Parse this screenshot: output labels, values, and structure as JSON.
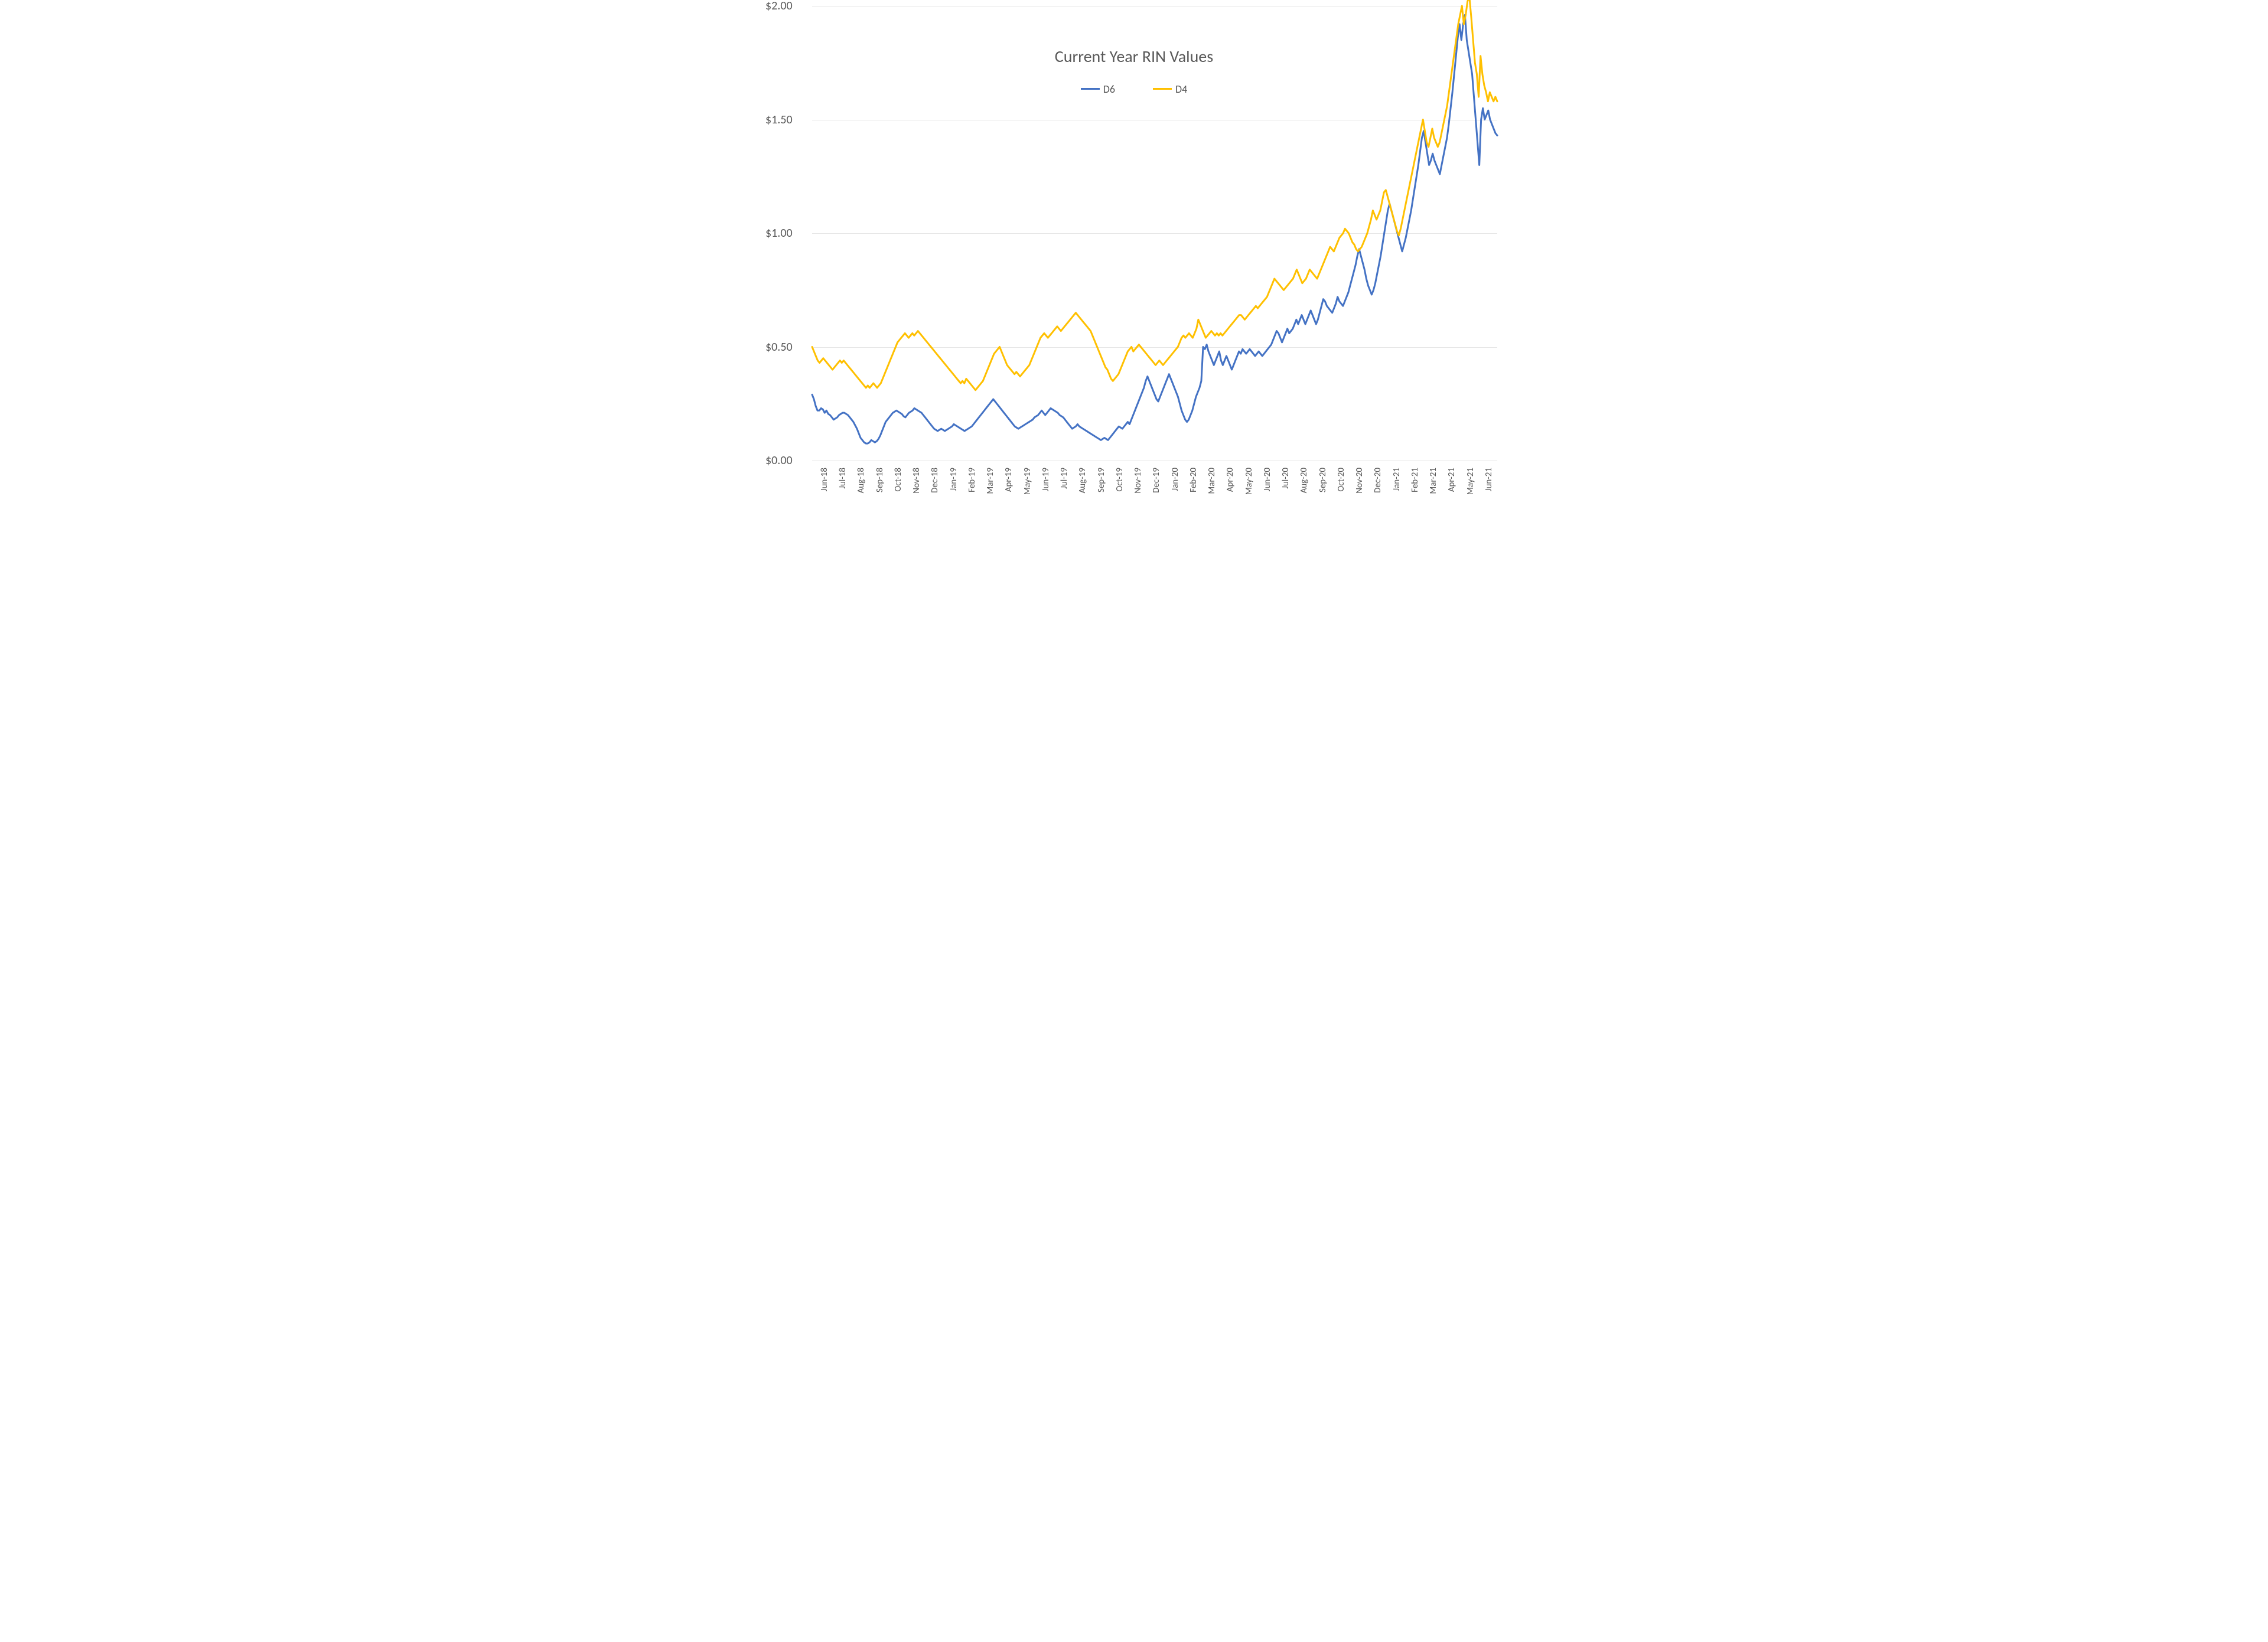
{
  "chart": {
    "type": "line",
    "title": "Current Year RIN Values",
    "title_fontsize": 28,
    "title_color": "#595959",
    "background_color": "#ffffff",
    "grid_color": "#e6e6e6",
    "axis_label_color": "#595959",
    "axis_label_fontsize": 18,
    "line_width": 3.0,
    "y_axis": {
      "min": 0.0,
      "max": 2.0,
      "tick_step": 0.5,
      "ticks": [
        0.0,
        0.5,
        1.0,
        1.5,
        2.0
      ],
      "tick_labels": [
        "$0.00",
        "$0.50",
        "$1.00",
        "$1.50",
        "$2.00"
      ],
      "currency_prefix": "$"
    },
    "x_axis": {
      "tick_labels": [
        "Jun-18",
        "Jul-18",
        "Aug-18",
        "Sep-18",
        "Oct-18",
        "Nov-18",
        "Dec-18",
        "Jan-19",
        "Feb-19",
        "Mar-19",
        "Apr-19",
        "May-19",
        "Jun-19",
        "Jul-19",
        "Aug-19",
        "Sep-19",
        "Oct-19",
        "Nov-19",
        "Dec-19",
        "Jan-20",
        "Feb-20",
        "Mar-20",
        "Apr-20",
        "May-20",
        "Jun-20",
        "Jul-20",
        "Aug-20",
        "Sep-20",
        "Oct-20",
        "Nov-20",
        "Dec-20",
        "Jan-21",
        "Feb-21",
        "Mar-21",
        "Apr-21",
        "May-21",
        "Jun-21"
      ],
      "tick_fontsize": 15,
      "rotation_deg": -90
    },
    "legend": {
      "position": "top-center",
      "items": [
        {
          "label": "D6",
          "color": "#4472c4"
        },
        {
          "label": "D4",
          "color": "#ffc000"
        }
      ],
      "fontsize": 18
    },
    "series": {
      "D6": {
        "label": "D6",
        "color": "#4472c4",
        "values": [
          0.29,
          0.27,
          0.24,
          0.22,
          0.22,
          0.23,
          0.225,
          0.21,
          0.22,
          0.205,
          0.2,
          0.19,
          0.18,
          0.185,
          0.19,
          0.2,
          0.205,
          0.21,
          0.21,
          0.205,
          0.2,
          0.19,
          0.18,
          0.17,
          0.155,
          0.14,
          0.12,
          0.1,
          0.09,
          0.08,
          0.075,
          0.075,
          0.08,
          0.09,
          0.085,
          0.08,
          0.085,
          0.095,
          0.11,
          0.13,
          0.15,
          0.17,
          0.18,
          0.19,
          0.2,
          0.21,
          0.215,
          0.22,
          0.215,
          0.21,
          0.205,
          0.195,
          0.19,
          0.2,
          0.21,
          0.215,
          0.22,
          0.23,
          0.225,
          0.22,
          0.215,
          0.21,
          0.2,
          0.19,
          0.18,
          0.17,
          0.16,
          0.15,
          0.14,
          0.135,
          0.13,
          0.135,
          0.14,
          0.135,
          0.13,
          0.135,
          0.14,
          0.145,
          0.15,
          0.16,
          0.155,
          0.15,
          0.145,
          0.14,
          0.135,
          0.13,
          0.135,
          0.14,
          0.145,
          0.15,
          0.16,
          0.17,
          0.18,
          0.19,
          0.2,
          0.21,
          0.22,
          0.23,
          0.24,
          0.25,
          0.26,
          0.27,
          0.26,
          0.25,
          0.24,
          0.23,
          0.22,
          0.21,
          0.2,
          0.19,
          0.18,
          0.17,
          0.16,
          0.15,
          0.145,
          0.14,
          0.145,
          0.15,
          0.155,
          0.16,
          0.165,
          0.17,
          0.175,
          0.18,
          0.19,
          0.195,
          0.2,
          0.21,
          0.22,
          0.21,
          0.2,
          0.21,
          0.22,
          0.23,
          0.225,
          0.22,
          0.215,
          0.21,
          0.2,
          0.195,
          0.19,
          0.18,
          0.17,
          0.16,
          0.15,
          0.14,
          0.145,
          0.15,
          0.16,
          0.15,
          0.145,
          0.14,
          0.135,
          0.13,
          0.125,
          0.12,
          0.115,
          0.11,
          0.105,
          0.1,
          0.095,
          0.09,
          0.095,
          0.1,
          0.095,
          0.09,
          0.1,
          0.11,
          0.12,
          0.13,
          0.14,
          0.15,
          0.145,
          0.14,
          0.15,
          0.16,
          0.17,
          0.16,
          0.18,
          0.2,
          0.22,
          0.24,
          0.26,
          0.28,
          0.3,
          0.32,
          0.35,
          0.37,
          0.35,
          0.33,
          0.31,
          0.29,
          0.27,
          0.26,
          0.28,
          0.3,
          0.32,
          0.34,
          0.36,
          0.38,
          0.36,
          0.34,
          0.32,
          0.3,
          0.28,
          0.25,
          0.22,
          0.2,
          0.18,
          0.17,
          0.18,
          0.2,
          0.22,
          0.25,
          0.28,
          0.3,
          0.32,
          0.35,
          0.5,
          0.49,
          0.51,
          0.48,
          0.46,
          0.44,
          0.42,
          0.44,
          0.46,
          0.48,
          0.44,
          0.42,
          0.44,
          0.46,
          0.44,
          0.42,
          0.4,
          0.42,
          0.44,
          0.46,
          0.48,
          0.47,
          0.49,
          0.48,
          0.47,
          0.48,
          0.49,
          0.48,
          0.47,
          0.46,
          0.47,
          0.48,
          0.47,
          0.46,
          0.47,
          0.48,
          0.49,
          0.5,
          0.51,
          0.53,
          0.55,
          0.57,
          0.56,
          0.54,
          0.52,
          0.54,
          0.56,
          0.58,
          0.56,
          0.57,
          0.58,
          0.6,
          0.62,
          0.6,
          0.62,
          0.64,
          0.62,
          0.6,
          0.62,
          0.64,
          0.66,
          0.64,
          0.62,
          0.6,
          0.62,
          0.65,
          0.68,
          0.71,
          0.7,
          0.68,
          0.67,
          0.66,
          0.65,
          0.67,
          0.69,
          0.72,
          0.7,
          0.69,
          0.68,
          0.7,
          0.72,
          0.74,
          0.77,
          0.8,
          0.83,
          0.86,
          0.9,
          0.93,
          0.9,
          0.87,
          0.84,
          0.8,
          0.77,
          0.75,
          0.73,
          0.75,
          0.78,
          0.82,
          0.86,
          0.9,
          0.95,
          1.0,
          1.05,
          1.1,
          1.13,
          1.1,
          1.07,
          1.04,
          1.01,
          0.98,
          0.95,
          0.92,
          0.95,
          0.98,
          1.02,
          1.06,
          1.1,
          1.15,
          1.2,
          1.25,
          1.3,
          1.36,
          1.42,
          1.45,
          1.4,
          1.35,
          1.3,
          1.32,
          1.35,
          1.32,
          1.3,
          1.28,
          1.26,
          1.3,
          1.34,
          1.38,
          1.42,
          1.48,
          1.55,
          1.62,
          1.7,
          1.78,
          1.86,
          1.92,
          1.85,
          1.92,
          1.96,
          1.85,
          1.8,
          1.75,
          1.7,
          1.6,
          1.5,
          1.4,
          1.3,
          1.5,
          1.55,
          1.5,
          1.52,
          1.54,
          1.5,
          1.48,
          1.46,
          1.44,
          1.43
        ]
      },
      "D4": {
        "label": "D4",
        "color": "#ffc000",
        "values": [
          0.5,
          0.48,
          0.46,
          0.44,
          0.43,
          0.44,
          0.45,
          0.44,
          0.43,
          0.42,
          0.41,
          0.4,
          0.41,
          0.42,
          0.43,
          0.44,
          0.43,
          0.44,
          0.43,
          0.42,
          0.41,
          0.4,
          0.39,
          0.38,
          0.37,
          0.36,
          0.35,
          0.34,
          0.33,
          0.32,
          0.33,
          0.32,
          0.33,
          0.34,
          0.33,
          0.32,
          0.33,
          0.34,
          0.36,
          0.38,
          0.4,
          0.42,
          0.44,
          0.46,
          0.48,
          0.5,
          0.52,
          0.53,
          0.54,
          0.55,
          0.56,
          0.55,
          0.54,
          0.55,
          0.56,
          0.55,
          0.56,
          0.57,
          0.56,
          0.55,
          0.54,
          0.53,
          0.52,
          0.51,
          0.5,
          0.49,
          0.48,
          0.47,
          0.46,
          0.45,
          0.44,
          0.43,
          0.42,
          0.41,
          0.4,
          0.39,
          0.38,
          0.37,
          0.36,
          0.35,
          0.34,
          0.35,
          0.34,
          0.36,
          0.35,
          0.34,
          0.33,
          0.32,
          0.31,
          0.32,
          0.33,
          0.34,
          0.35,
          0.37,
          0.39,
          0.41,
          0.43,
          0.45,
          0.47,
          0.48,
          0.49,
          0.5,
          0.48,
          0.46,
          0.44,
          0.42,
          0.41,
          0.4,
          0.39,
          0.38,
          0.39,
          0.38,
          0.37,
          0.38,
          0.39,
          0.4,
          0.41,
          0.42,
          0.44,
          0.46,
          0.48,
          0.5,
          0.52,
          0.54,
          0.55,
          0.56,
          0.55,
          0.54,
          0.55,
          0.56,
          0.57,
          0.58,
          0.59,
          0.58,
          0.57,
          0.58,
          0.59,
          0.6,
          0.61,
          0.62,
          0.63,
          0.64,
          0.65,
          0.64,
          0.63,
          0.62,
          0.61,
          0.6,
          0.59,
          0.58,
          0.57,
          0.55,
          0.53,
          0.51,
          0.49,
          0.47,
          0.45,
          0.43,
          0.41,
          0.4,
          0.38,
          0.36,
          0.35,
          0.36,
          0.37,
          0.38,
          0.4,
          0.42,
          0.44,
          0.46,
          0.48,
          0.49,
          0.5,
          0.48,
          0.49,
          0.5,
          0.51,
          0.5,
          0.49,
          0.48,
          0.47,
          0.46,
          0.45,
          0.44,
          0.43,
          0.42,
          0.43,
          0.44,
          0.43,
          0.42,
          0.43,
          0.44,
          0.45,
          0.46,
          0.47,
          0.48,
          0.49,
          0.5,
          0.52,
          0.54,
          0.55,
          0.54,
          0.55,
          0.56,
          0.55,
          0.54,
          0.56,
          0.58,
          0.62,
          0.6,
          0.58,
          0.56,
          0.54,
          0.55,
          0.56,
          0.57,
          0.56,
          0.55,
          0.56,
          0.55,
          0.56,
          0.55,
          0.56,
          0.57,
          0.58,
          0.59,
          0.6,
          0.61,
          0.62,
          0.63,
          0.64,
          0.64,
          0.63,
          0.62,
          0.63,
          0.64,
          0.65,
          0.66,
          0.67,
          0.68,
          0.67,
          0.68,
          0.69,
          0.7,
          0.71,
          0.72,
          0.74,
          0.76,
          0.78,
          0.8,
          0.79,
          0.78,
          0.77,
          0.76,
          0.75,
          0.76,
          0.77,
          0.78,
          0.79,
          0.8,
          0.82,
          0.84,
          0.82,
          0.8,
          0.78,
          0.79,
          0.8,
          0.82,
          0.84,
          0.83,
          0.82,
          0.81,
          0.8,
          0.82,
          0.84,
          0.86,
          0.88,
          0.9,
          0.92,
          0.94,
          0.93,
          0.92,
          0.94,
          0.96,
          0.98,
          0.99,
          1.0,
          1.02,
          1.01,
          1.0,
          0.98,
          0.96,
          0.95,
          0.93,
          0.92,
          0.93,
          0.94,
          0.96,
          0.98,
          1.0,
          1.03,
          1.06,
          1.1,
          1.08,
          1.06,
          1.08,
          1.1,
          1.14,
          1.18,
          1.19,
          1.16,
          1.13,
          1.1,
          1.07,
          1.04,
          1.01,
          0.99,
          1.02,
          1.06,
          1.1,
          1.14,
          1.18,
          1.22,
          1.26,
          1.3,
          1.34,
          1.38,
          1.42,
          1.46,
          1.5,
          1.45,
          1.4,
          1.38,
          1.42,
          1.46,
          1.42,
          1.4,
          1.38,
          1.4,
          1.44,
          1.48,
          1.52,
          1.56,
          1.62,
          1.68,
          1.74,
          1.8,
          1.86,
          1.92,
          1.96,
          2.0,
          1.92,
          1.96,
          2.02,
          2.04,
          1.95,
          1.85,
          1.75,
          1.7,
          1.6,
          1.78,
          1.7,
          1.65,
          1.62,
          1.58,
          1.62,
          1.6,
          1.58,
          1.6,
          1.58
        ]
      }
    }
  }
}
